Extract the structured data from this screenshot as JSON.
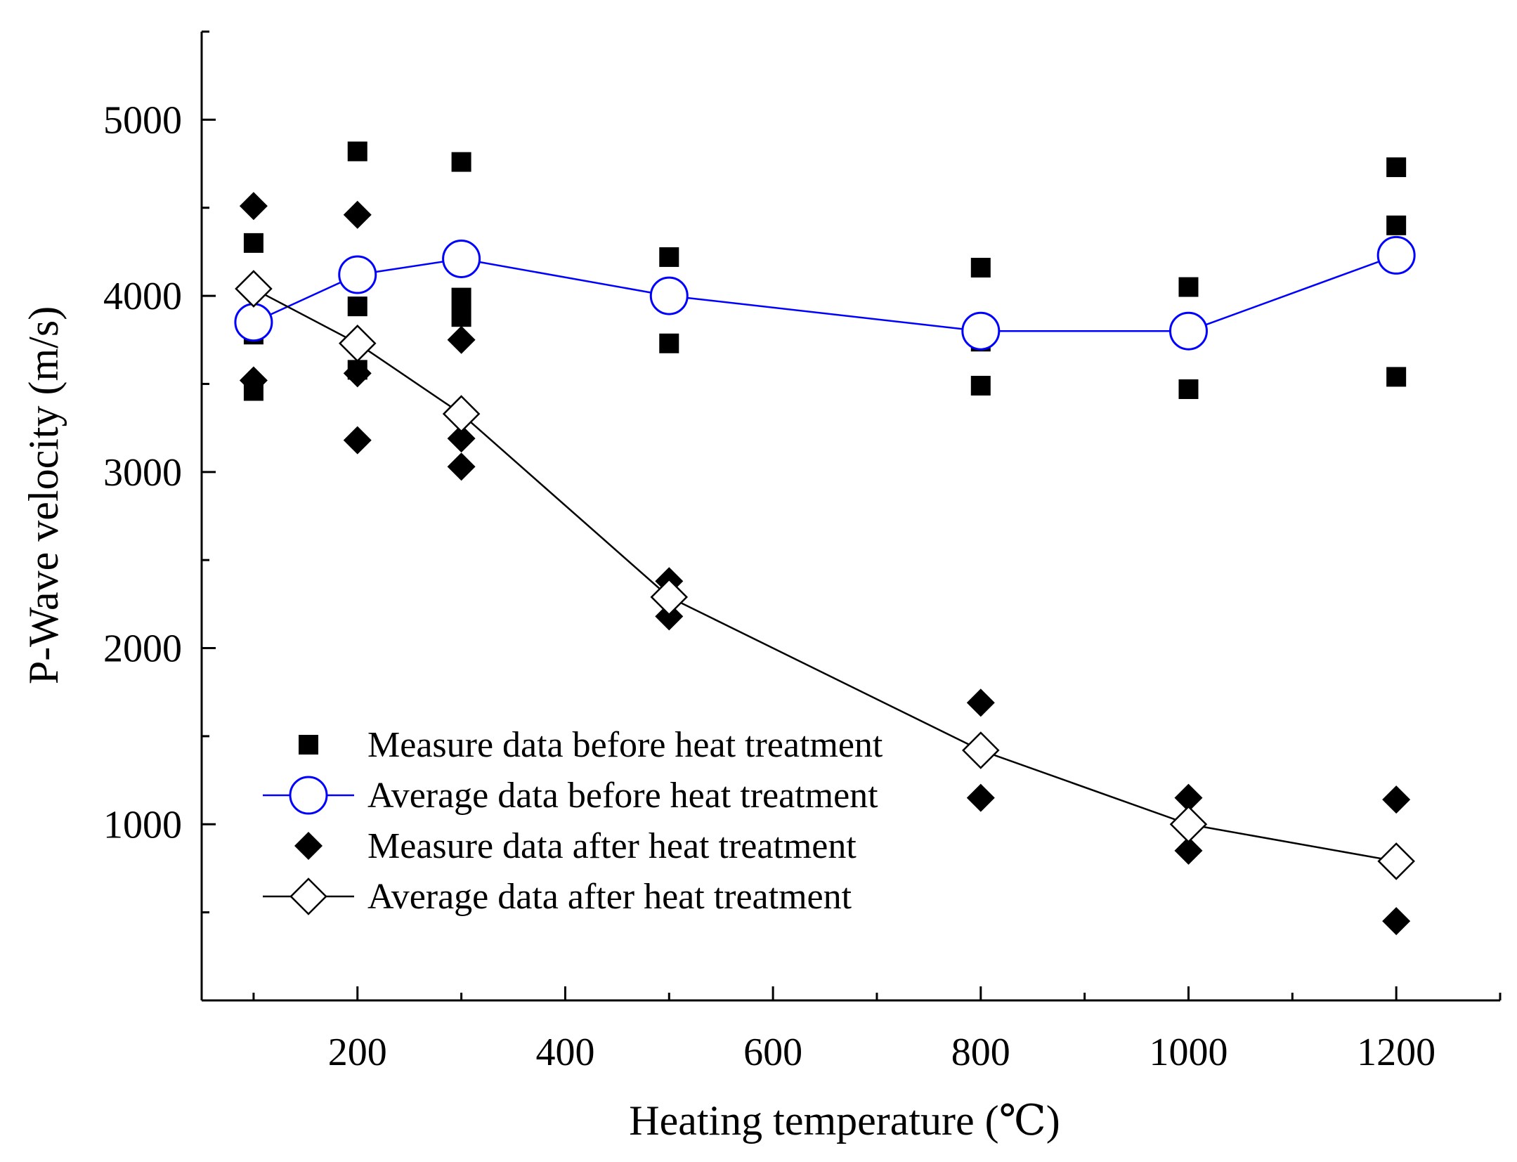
{
  "chart_data": {
    "type": "scatter",
    "title": "",
    "xlabel": "Heating temperature (℃)",
    "ylabel": "P-Wave velocity (m/s)",
    "xlim": [
      50,
      1300
    ],
    "ylim": [
      0,
      5500
    ],
    "x_ticks": [
      200,
      400,
      600,
      800,
      1000,
      1200
    ],
    "y_ticks": [
      1000,
      2000,
      3000,
      4000,
      5000
    ],
    "x_minor_ticks": [
      100,
      300,
      500,
      700,
      900,
      1100,
      1300
    ],
    "y_minor_ticks": [
      500,
      1500,
      2500,
      3500,
      4500,
      5500
    ],
    "grid": false,
    "legend_position": "lower-left",
    "series": [
      {
        "name": "Measure data before heat treatment",
        "kind": "scatter",
        "marker": "square-filled",
        "color": "#000000",
        "points": [
          [
            100,
            4300
          ],
          [
            100,
            3780
          ],
          [
            100,
            3460
          ],
          [
            200,
            4820
          ],
          [
            200,
            3940
          ],
          [
            200,
            3580
          ],
          [
            300,
            4760
          ],
          [
            300,
            3990
          ],
          [
            300,
            3880
          ],
          [
            500,
            4220
          ],
          [
            500,
            3730
          ],
          [
            800,
            4160
          ],
          [
            800,
            3740
          ],
          [
            800,
            3490
          ],
          [
            1000,
            4050
          ],
          [
            1000,
            3470
          ],
          [
            1200,
            4730
          ],
          [
            1200,
            4400
          ],
          [
            1200,
            3540
          ]
        ]
      },
      {
        "name": "Average data before heat treatment",
        "kind": "line",
        "marker": "circle-open",
        "color": "#0000ff",
        "x": [
          100,
          200,
          300,
          500,
          800,
          1000,
          1200
        ],
        "y": [
          3850,
          4120,
          4210,
          4000,
          3800,
          3800,
          4230
        ]
      },
      {
        "name": "Measure data after heat treatment",
        "kind": "scatter",
        "marker": "diamond-filled",
        "color": "#000000",
        "points": [
          [
            100,
            4510
          ],
          [
            100,
            3520
          ],
          [
            200,
            4460
          ],
          [
            200,
            3560
          ],
          [
            200,
            3180
          ],
          [
            300,
            3750
          ],
          [
            300,
            3190
          ],
          [
            300,
            3030
          ],
          [
            500,
            2380
          ],
          [
            500,
            2180
          ],
          [
            800,
            1690
          ],
          [
            800,
            1150
          ],
          [
            1000,
            1150
          ],
          [
            1000,
            850
          ],
          [
            1200,
            1140
          ],
          [
            1200,
            450
          ]
        ]
      },
      {
        "name": "Average data after heat treatment",
        "kind": "line",
        "marker": "diamond-open",
        "color": "#000000",
        "x": [
          100,
          200,
          300,
          500,
          800,
          1000,
          1200
        ],
        "y": [
          4040,
          3730,
          3330,
          2290,
          1420,
          1000,
          790
        ]
      }
    ]
  }
}
